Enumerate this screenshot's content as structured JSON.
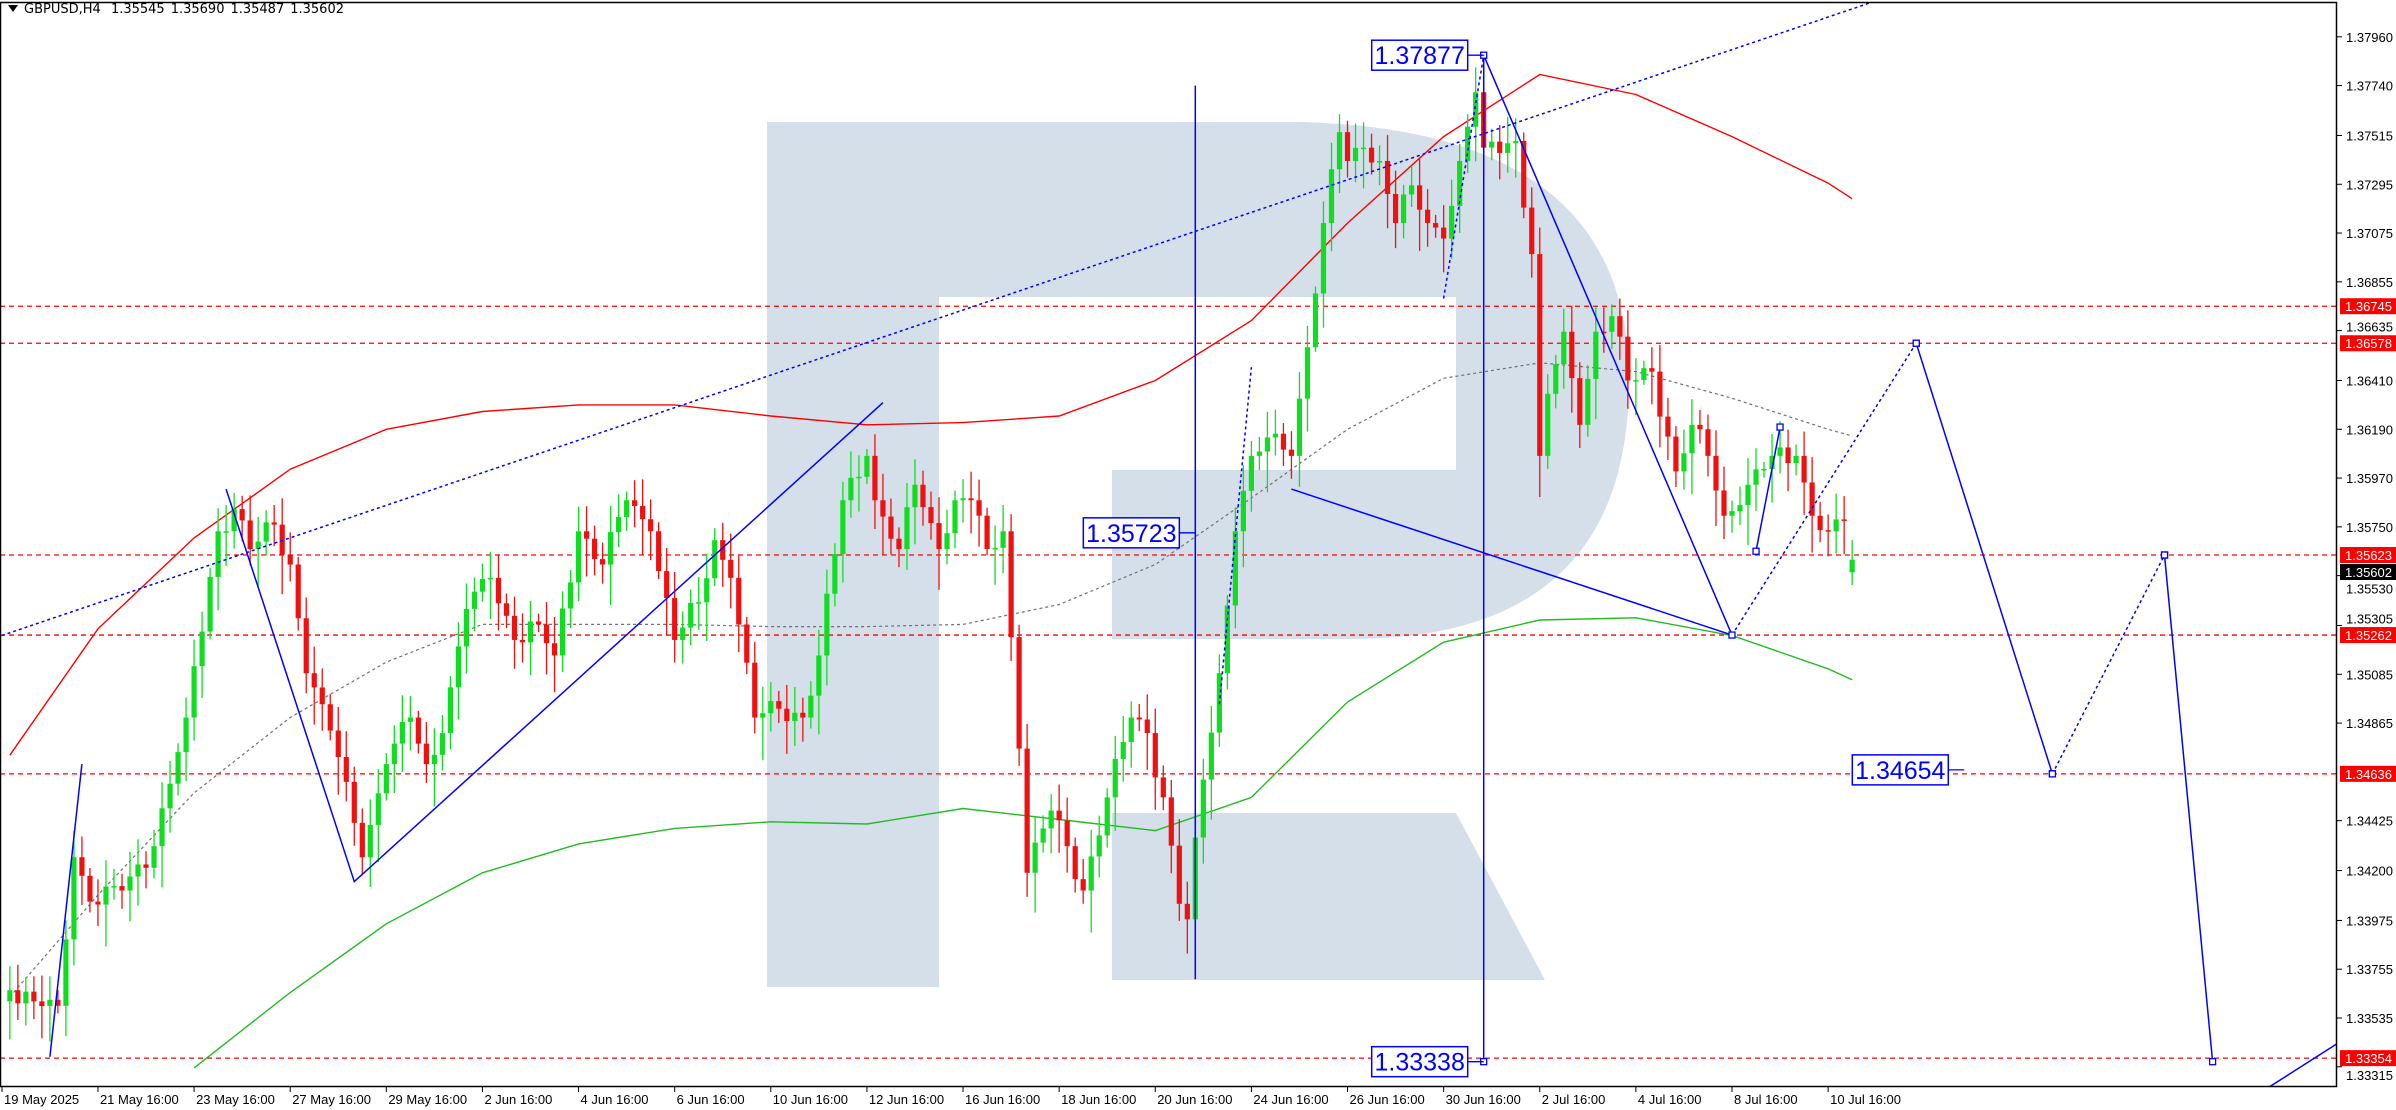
{
  "header": {
    "toggle_icon": "triangle-down-icon",
    "symbol": "GBPUSD,H4",
    "open": "1.35545",
    "high": "1.35690",
    "low": "1.35487",
    "close": "1.35602"
  },
  "chart_data": {
    "type": "candlestick",
    "symbol": "GBPUSD",
    "timeframe": "H4",
    "year": 2025,
    "ylim": [
      1.332,
      1.3802
    ],
    "grid": false,
    "colors": {
      "up": "#10dd22",
      "down": "#ee1111",
      "level_line": "#ff0000",
      "wave_line": "#0000ff",
      "watermark": "#d4dfea",
      "ma_red": "#ff0000",
      "ma_green": "#22bb22",
      "ma_gray": "#707070",
      "axis_label_bg": "#ff0000",
      "current_price_bg": "#000000"
    },
    "price_path": [
      {
        "t": "19 May 20:00",
        "close": 1.3366
      },
      {
        "t": "20 May 08:00",
        "close": 1.3361
      },
      {
        "t": "20 May 20:00",
        "close": 1.3359
      },
      {
        "t": "21 May 04:00",
        "close": 1.3426
      },
      {
        "t": "21 May 12:00",
        "close": 1.3406
      },
      {
        "t": "22 May 04:00",
        "close": 1.3411
      },
      {
        "t": "22 May 20:00",
        "close": 1.3431
      },
      {
        "t": "23 May 12:00",
        "close": 1.3489
      },
      {
        "t": "26 May 04:00",
        "close": 1.3573
      },
      {
        "t": "26 May 12:00",
        "close": 1.3583
      },
      {
        "t": "26 May 20:00",
        "close": 1.3565
      },
      {
        "t": "27 May 08:00",
        "close": 1.3576
      },
      {
        "t": "27 May 16:00",
        "close": 1.3558
      },
      {
        "t": "28 May 00:00",
        "close": 1.3509
      },
      {
        "t": "28 May 08:00",
        "close": 1.3495
      },
      {
        "t": "28 May 20:00",
        "close": 1.346
      },
      {
        "t": "29 May 04:00",
        "close": 1.3426
      },
      {
        "t": "29 May 16:00",
        "close": 1.3468
      },
      {
        "t": "30 May 04:00",
        "close": 1.3489
      },
      {
        "t": "30 May 12:00",
        "close": 1.3468
      },
      {
        "t": "30 May 20:00",
        "close": 1.3482
      },
      {
        "t": "2 Jun 08:00",
        "close": 1.3538
      },
      {
        "t": "2 Jun 20:00",
        "close": 1.3552
      },
      {
        "t": "3 Jun 08:00",
        "close": 1.3524
      },
      {
        "t": "3 Jun 20:00",
        "close": 1.3531
      },
      {
        "t": "4 Jun 04:00",
        "close": 1.3517
      },
      {
        "t": "4 Jun 16:00",
        "close": 1.3573
      },
      {
        "t": "5 Jun 04:00",
        "close": 1.3558
      },
      {
        "t": "5 Jun 16:00",
        "close": 1.3587
      },
      {
        "t": "6 Jun 04:00",
        "close": 1.3573
      },
      {
        "t": "6 Jun 16:00",
        "close": 1.3524
      },
      {
        "t": "9 Jun 04:00",
        "close": 1.3541
      },
      {
        "t": "9 Jun 12:00",
        "close": 1.3569
      },
      {
        "t": "9 Jun 20:00",
        "close": 1.3552
      },
      {
        "t": "10 Jun 08:00",
        "close": 1.3489
      },
      {
        "t": "10 Jun 20:00",
        "close": 1.3493
      },
      {
        "t": "11 Jun 08:00",
        "close": 1.3489
      },
      {
        "t": "11 Jun 16:00",
        "close": 1.3517
      },
      {
        "t": "12 Jun 04:00",
        "close": 1.3587
      },
      {
        "t": "12 Jun 16:00",
        "close": 1.3607
      },
      {
        "t": "12 Jun 20:00",
        "close": 1.3587
      },
      {
        "t": "13 Jun 08:00",
        "close": 1.3565
      },
      {
        "t": "13 Jun 16:00",
        "close": 1.3594
      },
      {
        "t": "16 Jun 04:00",
        "close": 1.3565
      },
      {
        "t": "16 Jun 12:00",
        "close": 1.3587
      },
      {
        "t": "16 Jun 20:00",
        "close": 1.3587
      },
      {
        "t": "17 Jun 04:00",
        "close": 1.3565
      },
      {
        "t": "17 Jun 12:00",
        "close": 1.3573
      },
      {
        "t": "17 Jun 20:00",
        "close": 1.3475
      },
      {
        "t": "18 Jun 00:00",
        "close": 1.3419
      },
      {
        "t": "18 Jun 12:00",
        "close": 1.3447
      },
      {
        "t": "18 Jun 20:00",
        "close": 1.3431
      },
      {
        "t": "19 Jun 04:00",
        "close": 1.3411
      },
      {
        "t": "19 Jun 16:00",
        "close": 1.3453
      },
      {
        "t": "20 Jun 04:00",
        "close": 1.3489
      },
      {
        "t": "20 Jun 12:00",
        "close": 1.3482
      },
      {
        "t": "20 Jun 20:00",
        "close": 1.3453
      },
      {
        "t": "23 Jun 04:00",
        "close": 1.3405
      },
      {
        "t": "23 Jun 08:00",
        "close": 1.3398
      },
      {
        "t": "23 Jun 16:00",
        "close": 1.3461
      },
      {
        "t": "24 Jun 00:00",
        "close": 1.3509
      },
      {
        "t": "24 Jun 08:00",
        "close": 1.3573
      },
      {
        "t": "24 Jun 16:00",
        "close": 1.3607
      },
      {
        "t": "25 Jun 04:00",
        "close": 1.3617
      },
      {
        "t": "25 Jun 12:00",
        "close": 1.3607
      },
      {
        "t": "25 Jun 20:00",
        "close": 1.3656
      },
      {
        "t": "26 Jun 04:00",
        "close": 1.3712
      },
      {
        "t": "26 Jun 12:00",
        "close": 1.3753
      },
      {
        "t": "26 Jun 16:00",
        "close": 1.374
      },
      {
        "t": "27 Jun 00:00",
        "close": 1.3746
      },
      {
        "t": "27 Jun 08:00",
        "close": 1.374
      },
      {
        "t": "27 Jun 16:00",
        "close": 1.3712
      },
      {
        "t": "30 Jun 00:00",
        "close": 1.3729
      },
      {
        "t": "30 Jun 08:00",
        "close": 1.3712
      },
      {
        "t": "30 Jun 16:00",
        "close": 1.3705
      },
      {
        "t": "1 Jul 00:00",
        "close": 1.374
      },
      {
        "t": "1 Jul 08:00",
        "close": 1.3771
      },
      {
        "t": "1 Jul 12:00",
        "close": 1.3746
      },
      {
        "t": "2 Jul 04:00",
        "close": 1.3749
      },
      {
        "t": "2 Jul 12:00",
        "close": 1.3698
      },
      {
        "t": "2 Jul 16:00",
        "close": 1.3607
      },
      {
        "t": "2 Jul 20:00",
        "close": 1.3635
      },
      {
        "t": "3 Jul 04:00",
        "close": 1.3663
      },
      {
        "t": "3 Jul 12:00",
        "close": 1.3621
      },
      {
        "t": "3 Jul 20:00",
        "close": 1.3663
      },
      {
        "t": "4 Jul 04:00",
        "close": 1.367
      },
      {
        "t": "4 Jul 12:00",
        "close": 1.3641
      },
      {
        "t": "7 Jul 00:00",
        "close": 1.3645
      },
      {
        "t": "7 Jul 12:00",
        "close": 1.36
      },
      {
        "t": "7 Jul 20:00",
        "close": 1.3621
      },
      {
        "t": "8 Jul 04:00",
        "close": 1.3607
      },
      {
        "t": "8 Jul 12:00",
        "close": 1.358
      },
      {
        "t": "9 Jul 00:00",
        "close": 1.3594
      },
      {
        "t": "9 Jul 12:00",
        "close": 1.3607
      },
      {
        "t": "10 Jul 00:00",
        "close": 1.3607
      },
      {
        "t": "10 Jul 08:00",
        "close": 1.358
      },
      {
        "t": "10 Jul 16:00",
        "close": 1.3573
      },
      {
        "t": "11 Jul 00:00",
        "close": 1.3578
      },
      {
        "t": "11 Jul 04:00",
        "close": 1.35602
      }
    ],
    "last_bar": {
      "open": 1.35545,
      "high": 1.3569,
      "low": 1.35487,
      "close": 1.35602
    },
    "y_ticks": [
      "1.37960",
      "1.37740",
      "1.37515",
      "1.37295",
      "1.37075",
      "1.36855",
      "1.36635",
      "1.36410",
      "1.36190",
      "1.35970",
      "1.35750",
      "1.35530",
      "1.35305",
      "1.35085",
      "1.34865",
      "1.34425",
      "1.34200",
      "1.33975",
      "1.33755",
      "1.33535",
      "1.33315"
    ],
    "x_labels": [
      {
        "t": "19 May 16:00",
        "label": "19 May 2025"
      },
      {
        "t": "21 May 16:00",
        "label": "21 May 16:00"
      },
      {
        "t": "23 May 16:00",
        "label": "23 May 16:00"
      },
      {
        "t": "27 May 16:00",
        "label": "27 May 16:00"
      },
      {
        "t": "29 May 16:00",
        "label": "29 May 16:00"
      },
      {
        "t": "2 Jun 16:00",
        "label": "2 Jun 16:00"
      },
      {
        "t": "4 Jun 16:00",
        "label": "4 Jun 16:00"
      },
      {
        "t": "6 Jun 16:00",
        "label": "6 Jun 16:00"
      },
      {
        "t": "10 Jun 16:00",
        "label": "10 Jun 16:00"
      },
      {
        "t": "12 Jun 16:00",
        "label": "12 Jun 16:00"
      },
      {
        "t": "16 Jun 16:00",
        "label": "16 Jun 16:00"
      },
      {
        "t": "18 Jun 16:00",
        "label": "18 Jun 16:00"
      },
      {
        "t": "20 Jun 16:00",
        "label": "20 Jun 16:00"
      },
      {
        "t": "24 Jun 16:00",
        "label": "24 Jun 16:00"
      },
      {
        "t": "26 Jun 16:00",
        "label": "26 Jun 16:00"
      },
      {
        "t": "30 Jun 16:00",
        "label": "30 Jun 16:00"
      },
      {
        "t": "2 Jul 16:00",
        "label": "2 Jul 16:00"
      },
      {
        "t": "4 Jul 16:00",
        "label": "4 Jul 16:00"
      },
      {
        "t": "8 Jul 16:00",
        "label": "8 Jul 16:00"
      },
      {
        "t": "10 Jul 16:00",
        "label": "10 Jul 16:00"
      }
    ],
    "horizontal_levels": [
      {
        "price": 1.36745,
        "label": "1.36745"
      },
      {
        "price": 1.36578,
        "label": "1.36578"
      },
      {
        "price": 1.35623,
        "label": "1.35623"
      },
      {
        "price": 1.35262,
        "label": "1.35262"
      },
      {
        "price": 1.34636,
        "label": "1.34636"
      },
      {
        "price": 1.33354,
        "label": "1.33354"
      }
    ],
    "current_price": {
      "price": 1.35602,
      "label": "1.35602"
    },
    "moving_averages": {
      "sample_times": [
        "19 May 20:00",
        "21 May 16:00",
        "23 May 16:00",
        "27 May 16:00",
        "29 May 16:00",
        "2 Jun 16:00",
        "4 Jun 16:00",
        "6 Jun 16:00",
        "10 Jun 16:00",
        "12 Jun 16:00",
        "16 Jun 16:00",
        "18 Jun 16:00",
        "20 Jun 16:00",
        "24 Jun 16:00",
        "26 Jun 16:00",
        "30 Jun 16:00",
        "2 Jul 16:00",
        "4 Jul 16:00",
        "8 Jul 16:00",
        "10 Jul 16:00",
        "11 Jul 04:00"
      ],
      "series": [
        {
          "color": "#ff0000",
          "style": "solid",
          "values": [
            1.3472,
            1.3529,
            1.357,
            1.3601,
            1.3619,
            1.3627,
            1.363,
            1.363,
            1.3625,
            1.3621,
            1.3622,
            1.3625,
            1.3641,
            1.3668,
            1.3712,
            1.3751,
            1.3779,
            1.377,
            1.3751,
            1.373,
            1.3723
          ]
        },
        {
          "color": "#22bb22",
          "style": "solid",
          "values": [
            null,
            null,
            1.3331,
            1.3365,
            1.3396,
            1.3419,
            1.3432,
            1.3439,
            1.3442,
            1.3441,
            1.3448,
            1.3443,
            1.3438,
            1.3453,
            1.3496,
            1.3523,
            1.3533,
            1.3534,
            1.3526,
            1.3511,
            1.3506
          ]
        },
        {
          "color": "#707070",
          "style": "dotted",
          "values": [
            1.3363,
            1.3409,
            1.3455,
            1.3489,
            1.3514,
            1.3531,
            1.3531,
            1.3531,
            1.353,
            1.353,
            1.3531,
            1.354,
            1.3558,
            1.3588,
            1.3619,
            1.3642,
            1.3649,
            1.3645,
            1.3633,
            1.3619,
            1.3616
          ]
        }
      ]
    },
    "wave_lines": [
      {
        "style": "solid",
        "points": [
          [
            "20 May 16:00",
            1.3336
          ],
          [
            "21 May 08:00",
            1.3468
          ]
        ]
      },
      {
        "style": "solid",
        "points": [
          [
            "26 May 08:00",
            1.3592
          ],
          [
            "29 May 00:00",
            1.3415
          ],
          [
            "13 Jun 00:00",
            1.3631
          ]
        ]
      },
      {
        "style": "solid",
        "points": [
          [
            "23 Jun 12:00",
            1.3774
          ],
          [
            "23 Jun 12:00",
            1.3371
          ]
        ]
      },
      {
        "style": "solid",
        "points": [
          [
            "25 Jun 12:00",
            1.3592
          ],
          [
            "8 Jul 16:00",
            1.35262
          ]
        ]
      },
      {
        "style": "solid",
        "points": [
          [
            "1 Jul 12:00",
            1.37877
          ],
          [
            "8 Jul 16:00",
            1.35262
          ]
        ]
      },
      {
        "style": "solid",
        "points": [
          [
            "1 Jul 12:00",
            1.37877
          ],
          [
            "1 Jul 12:00",
            1.33338
          ]
        ],
        "markers": true
      },
      {
        "style": "solid",
        "points": [
          [
            "9 Jul 04:00",
            1.3564
          ],
          [
            "9 Jul 16:00",
            1.362
          ]
        ],
        "markers": true
      },
      {
        "style": "dotted",
        "points": [
          [
            "8 Jul 16:00",
            1.35262
          ],
          [
            "14 Jul 12:00",
            1.36578
          ]
        ],
        "markers": true
      },
      {
        "style": "solid",
        "points": [
          [
            "14 Jul 12:00",
            1.36578
          ],
          [
            "17 Jul 08:00",
            1.34636
          ]
        ],
        "markers": true
      },
      {
        "style": "dotted",
        "points": [
          [
            "17 Jul 08:00",
            1.34636
          ],
          [
            "21 Jul 16:00",
            1.35623
          ]
        ],
        "markers": true
      },
      {
        "style": "solid",
        "points": [
          [
            "21 Jul 16:00",
            1.35623
          ],
          [
            "22 Jul 16:00",
            1.33338
          ]
        ],
        "markers": true
      },
      {
        "style": "dotted",
        "points": [
          [
            "19 May 16:00",
            1.3526
          ],
          [
            "11 Jul 12:00",
            1.3811
          ],
          [
            "16 Jul 12:00",
            1.3848
          ]
        ]
      },
      {
        "style": "dotted",
        "points": [
          [
            "24 Jun 00:00",
            1.3495
          ],
          [
            "24 Jun 16:00",
            1.3647
          ]
        ]
      },
      {
        "style": "dotted",
        "points": [
          [
            "30 Jun 16:00",
            1.3678
          ],
          [
            "1 Jul 12:00",
            1.37877
          ]
        ]
      },
      {
        "style": "solid",
        "points": [
          [
            "23 Jul 04:00",
            1.3313
          ],
          [
            "25 Jul 08:00",
            1.3343
          ]
        ]
      }
    ],
    "price_labels": [
      {
        "text": "1.37877",
        "at": "1 Jul 12:00",
        "price": 1.37877
      },
      {
        "text": "1.35723",
        "at": "23 Jun 12:00",
        "price": 1.35723
      },
      {
        "text": "1.34654",
        "at": "15 Jul 12:00",
        "price": 1.34654
      },
      {
        "text": "1.33338",
        "at": "1 Jul 12:00",
        "price": 1.33338
      }
    ]
  }
}
